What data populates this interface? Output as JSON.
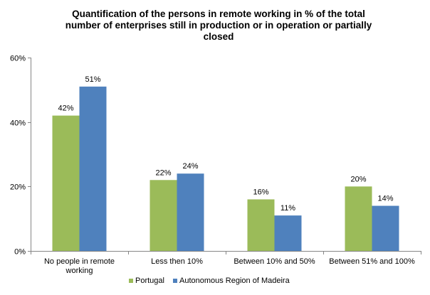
{
  "chart_data": {
    "type": "bar",
    "title_lines": [
      "Quantification of the persons in remote working in % of the total",
      "number of enterprises still in production or in operation or partially",
      "closed"
    ],
    "categories": [
      [
        "No people in remote",
        "working"
      ],
      [
        "Less then 10%"
      ],
      [
        "Between 10% and 50%"
      ],
      [
        "Between 51% and 100%"
      ]
    ],
    "series": [
      {
        "name": "Portugal",
        "color": "#9BBB59",
        "values": [
          42,
          22,
          16,
          20
        ]
      },
      {
        "name": "Autonomous Region of Madeira",
        "color": "#4F81BD",
        "values": [
          51,
          24,
          11,
          14
        ]
      }
    ],
    "value_suffix": "%",
    "ylim": [
      0,
      60
    ],
    "y_ticks": [
      0,
      20,
      40,
      60
    ],
    "y_tick_labels": [
      "0%",
      "20%",
      "40%",
      "60%"
    ],
    "grid": false,
    "legend_position": "bottom"
  }
}
